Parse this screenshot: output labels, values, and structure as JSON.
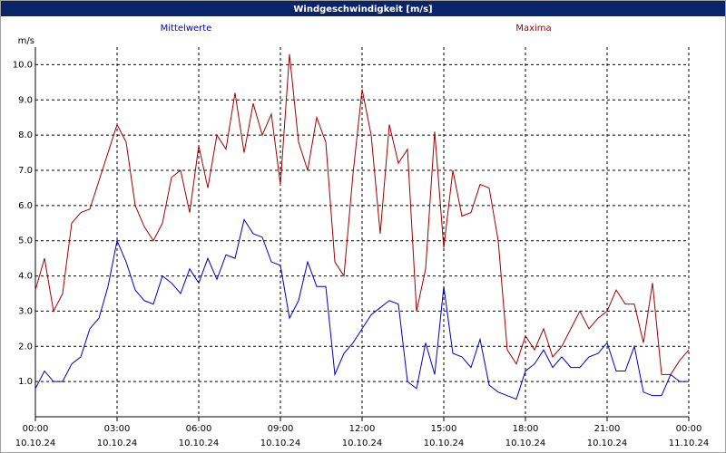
{
  "chart_data": {
    "type": "line",
    "title": "Windgeschwindigkeit [m/s]",
    "y_label": "m/s",
    "grid": true,
    "xlim": [
      0,
      1440
    ],
    "ylim": [
      0,
      10.5
    ],
    "yticks": [
      {
        "value": 1,
        "label": "1.0"
      },
      {
        "value": 2,
        "label": "2.0"
      },
      {
        "value": 3,
        "label": "3.0"
      },
      {
        "value": 4,
        "label": "4.0"
      },
      {
        "value": 5,
        "label": "5.0"
      },
      {
        "value": 6,
        "label": "6.0"
      },
      {
        "value": 7,
        "label": "7.0"
      },
      {
        "value": 8,
        "label": "8.0"
      },
      {
        "value": 9,
        "label": "9.0"
      },
      {
        "value": 10,
        "label": "10.0"
      }
    ],
    "xticks": [
      {
        "value": 0,
        "label": "00:00"
      },
      {
        "value": 180,
        "label": "03:00"
      },
      {
        "value": 360,
        "label": "06:00"
      },
      {
        "value": 540,
        "label": "09:00"
      },
      {
        "value": 720,
        "label": "12:00"
      },
      {
        "value": 900,
        "label": "15:00"
      },
      {
        "value": 1080,
        "label": "18:00"
      },
      {
        "value": 1260,
        "label": "21:00"
      },
      {
        "value": 1440,
        "label": "00:00"
      }
    ],
    "xtick_dates": [
      "10.10.24",
      "10.10.24",
      "10.10.24",
      "10.10.24",
      "10.10.24",
      "10.10.24",
      "10.10.24",
      "10.10.24",
      "11.10.24"
    ],
    "x": [
      0,
      20,
      40,
      60,
      80,
      100,
      120,
      140,
      160,
      180,
      200,
      220,
      240,
      260,
      280,
      300,
      320,
      340,
      360,
      380,
      400,
      420,
      440,
      460,
      480,
      500,
      520,
      540,
      560,
      580,
      600,
      620,
      640,
      660,
      680,
      700,
      720,
      740,
      760,
      780,
      800,
      820,
      840,
      860,
      880,
      900,
      920,
      940,
      960,
      980,
      1000,
      1020,
      1040,
      1060,
      1080,
      1100,
      1120,
      1140,
      1160,
      1180,
      1200,
      1220,
      1240,
      1260,
      1280,
      1300,
      1320,
      1340,
      1360,
      1380,
      1400,
      1420,
      1440
    ],
    "series": [
      {
        "name": "Mittelwerte",
        "color": "#0000c0",
        "values": [
          0.8,
          1.3,
          1.0,
          1.0,
          1.5,
          1.7,
          2.5,
          2.8,
          3.7,
          5.0,
          4.4,
          3.6,
          3.3,
          3.2,
          4.0,
          3.8,
          3.5,
          4.2,
          3.8,
          4.5,
          3.9,
          4.6,
          4.5,
          5.6,
          5.2,
          5.1,
          4.4,
          4.3,
          2.8,
          3.3,
          4.4,
          3.7,
          3.7,
          1.2,
          1.8,
          2.1,
          2.5,
          2.9,
          3.1,
          3.3,
          3.2,
          1.0,
          0.8,
          2.1,
          1.2,
          3.7,
          1.8,
          1.7,
          1.4,
          2.2,
          0.9,
          0.7,
          0.6,
          0.5,
          1.3,
          1.5,
          1.9,
          1.4,
          1.7,
          1.4,
          1.4,
          1.7,
          1.8,
          2.1,
          1.3,
          1.3,
          2.0,
          0.7,
          0.6,
          0.6,
          1.2,
          1.0,
          1.0
        ]
      },
      {
        "name": "Maxima",
        "color": "#a00000",
        "values": [
          3.6,
          4.5,
          3.0,
          3.5,
          5.5,
          5.8,
          5.9,
          6.7,
          7.5,
          8.3,
          7.8,
          6.0,
          5.4,
          5.0,
          5.5,
          6.8,
          7.0,
          5.8,
          7.7,
          6.5,
          8.0,
          7.6,
          9.2,
          7.5,
          8.9,
          8.0,
          8.6,
          6.6,
          10.3,
          7.8,
          7.0,
          8.5,
          7.8,
          4.4,
          4.0,
          6.9,
          9.3,
          8.0,
          5.2,
          8.3,
          7.2,
          7.6,
          3.0,
          4.2,
          8.1,
          4.8,
          7.0,
          5.7,
          5.8,
          6.6,
          6.5,
          5.0,
          1.9,
          1.5,
          2.3,
          1.9,
          2.5,
          1.7,
          2.0,
          2.5,
          3.0,
          2.5,
          2.8,
          3.0,
          3.6,
          3.2,
          3.2,
          2.1,
          3.8,
          1.2,
          1.2,
          1.6,
          1.9
        ]
      }
    ]
  }
}
